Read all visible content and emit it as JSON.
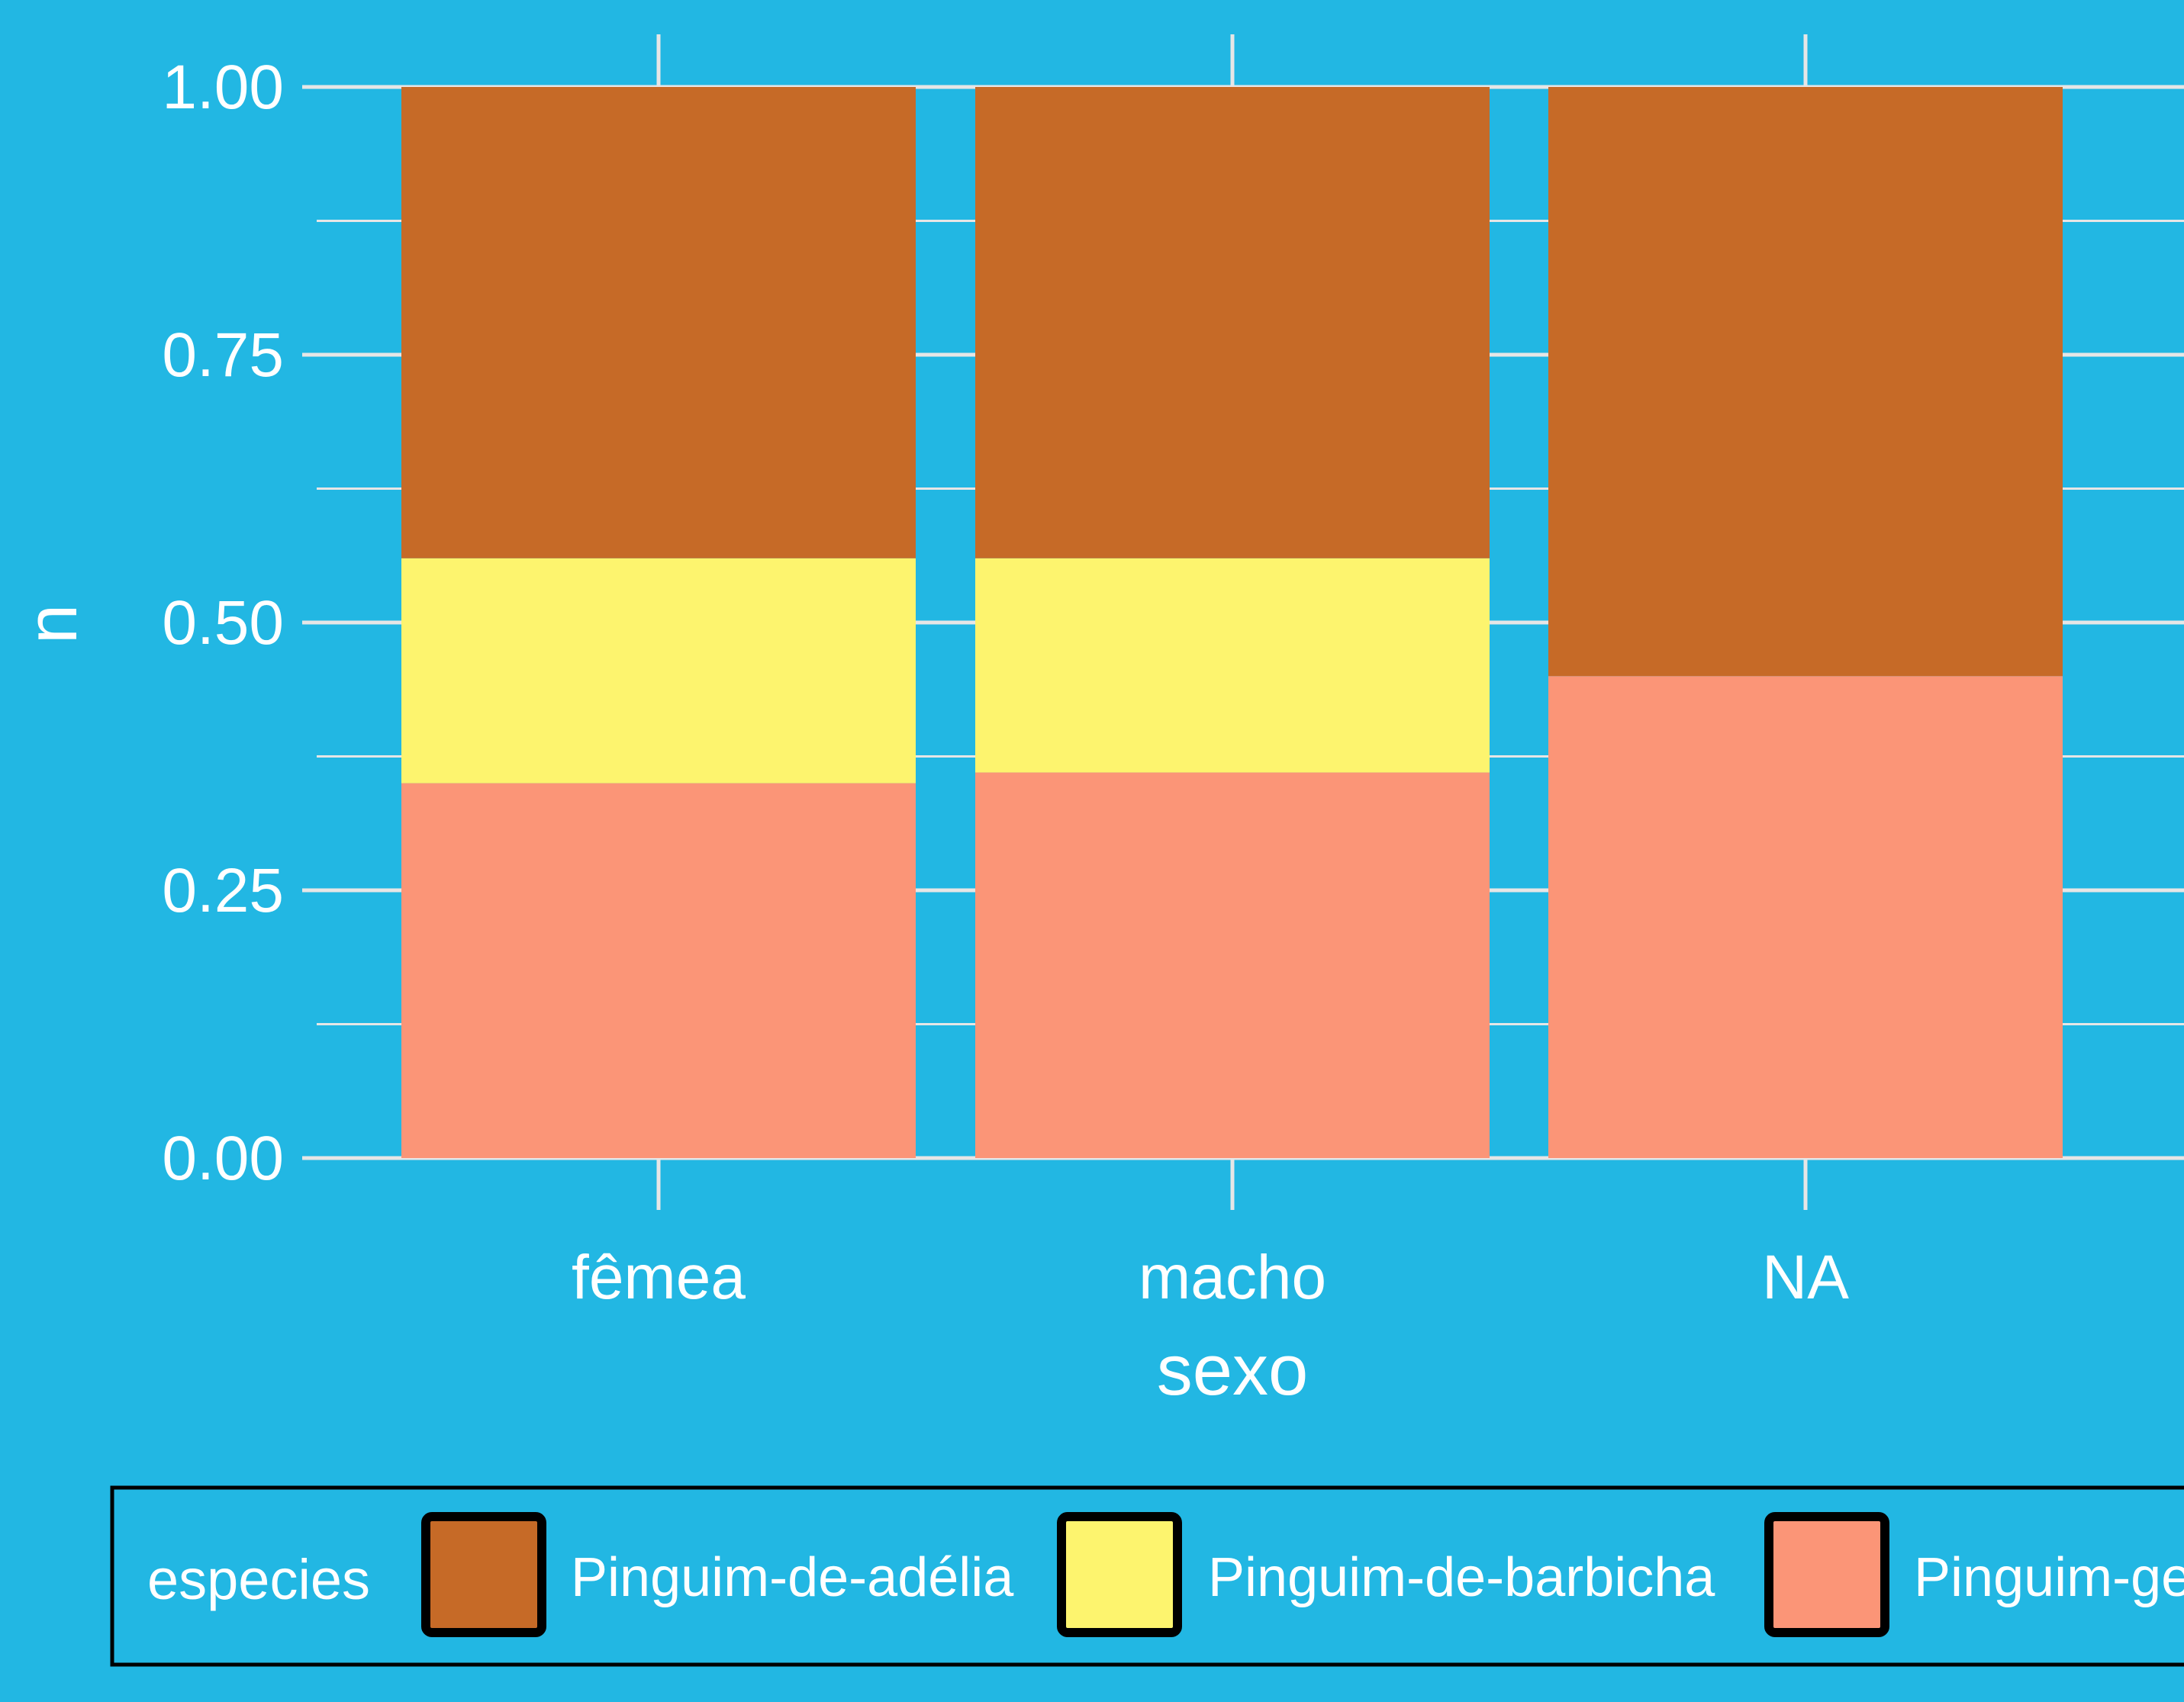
{
  "chart_data": {
    "type": "bar",
    "stacked": true,
    "position": "fill",
    "xlabel": "sexo",
    "ylabel": "n",
    "categories": [
      "fêmea",
      "macho",
      "NA"
    ],
    "ylim": [
      0,
      1
    ],
    "yticks": [
      "0.00",
      "0.25",
      "0.50",
      "0.75",
      "1.00"
    ],
    "grid": true,
    "legend_position": "bottom",
    "legend_title": "especies",
    "series": [
      {
        "name": "Pinguim-ge",
        "color": "#fb9577",
        "values": [
          0.35,
          0.36,
          0.45
        ]
      },
      {
        "name": "Pinguim-de-barbicha",
        "color": "#fdf46e",
        "values": [
          0.21,
          0.2,
          0.0
        ]
      },
      {
        "name": "Pinguim-de-adélia",
        "color": "#c66a27",
        "values": [
          0.44,
          0.44,
          0.55
        ]
      }
    ],
    "legend_order": [
      "Pinguim-de-adélia",
      "Pinguim-de-barbicha",
      "Pinguim-ge"
    ]
  },
  "colors": {
    "background": "#22b7e3",
    "grid": "#e6e6e6",
    "text": "#ffffff",
    "legend_border": "#000000"
  }
}
